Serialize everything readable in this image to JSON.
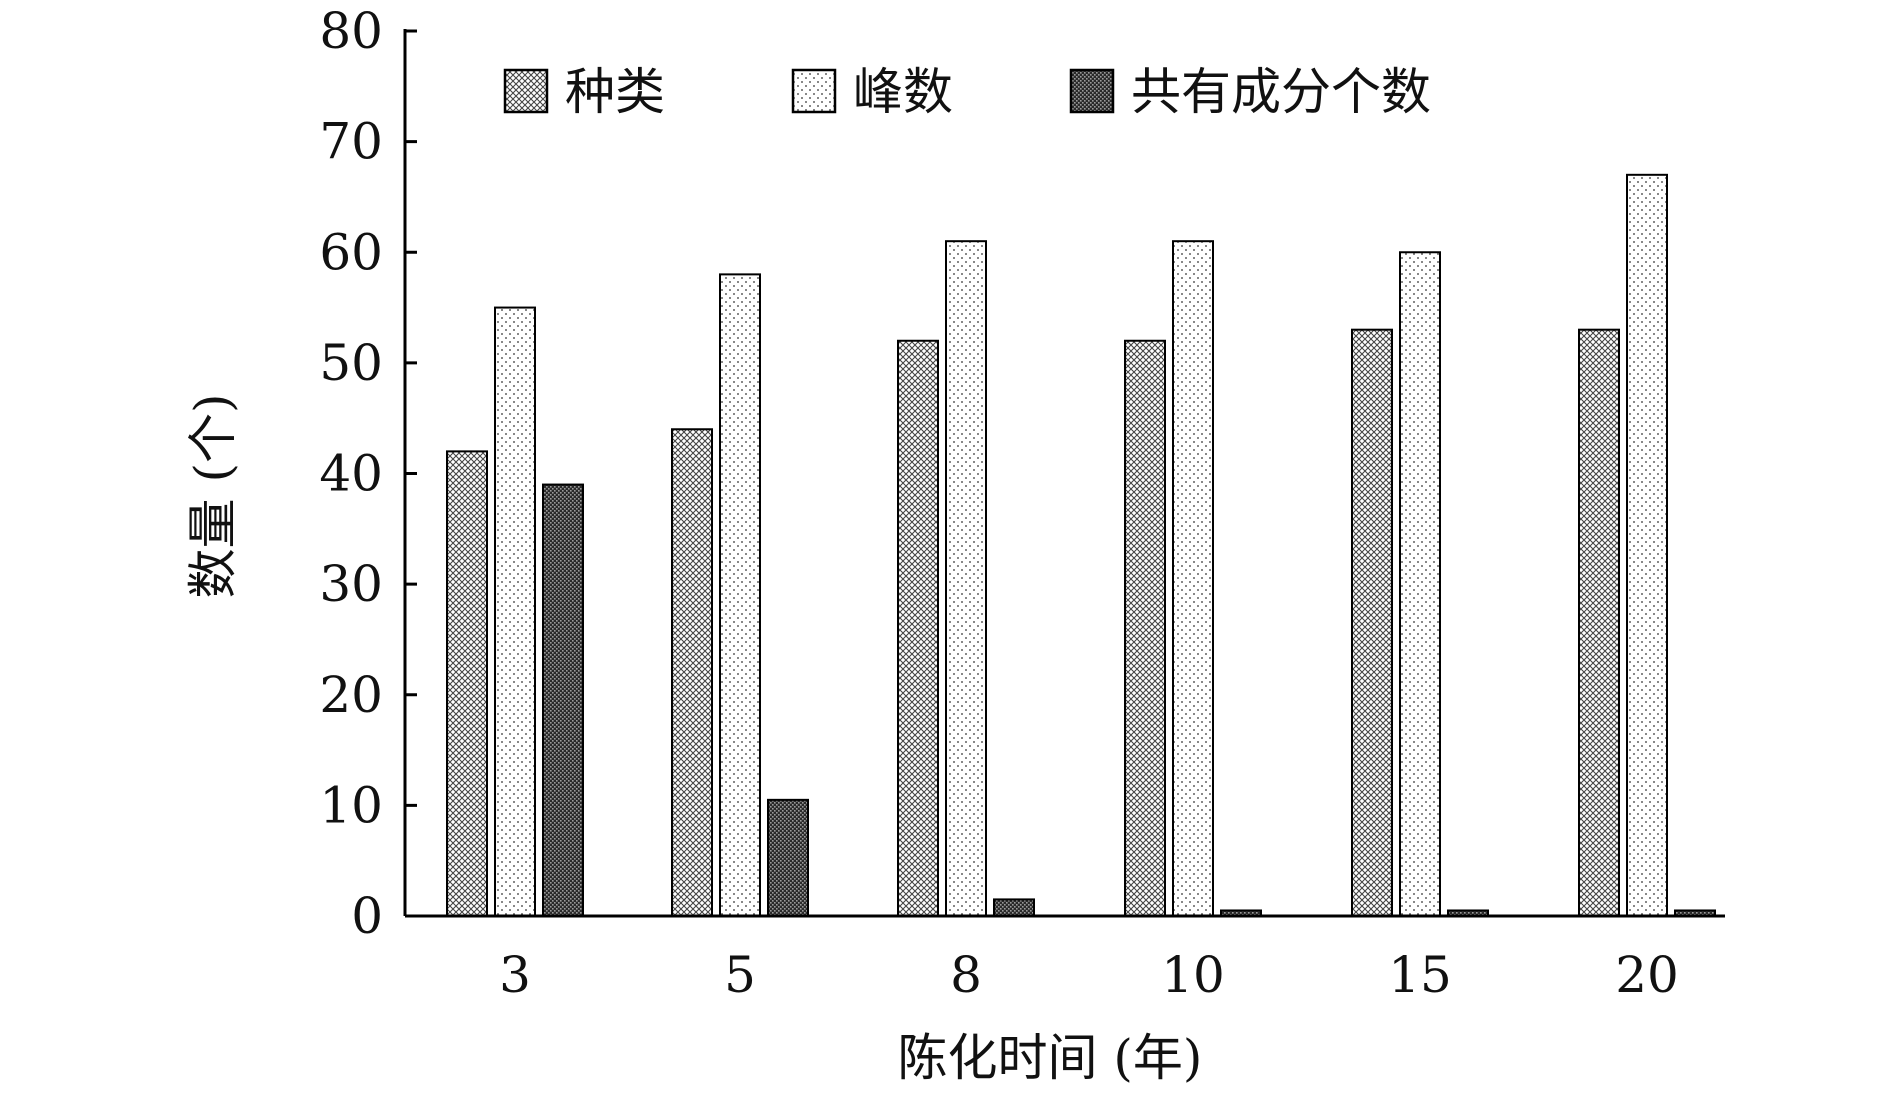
{
  "chart_data": {
    "type": "bar",
    "categories": [
      "3",
      "5",
      "8",
      "10",
      "15",
      "20"
    ],
    "series": [
      {
        "name": "种类",
        "values": [
          42,
          44,
          52,
          52,
          53,
          53
        ],
        "pattern": "crosshatch"
      },
      {
        "name": "峰数",
        "values": [
          55,
          58,
          61,
          61,
          60,
          67
        ],
        "pattern": "dots"
      },
      {
        "name": "共有成分个数",
        "values": [
          39,
          10.5,
          1.5,
          0.5,
          0.5,
          0.5
        ],
        "pattern": "dense"
      }
    ],
    "title": "",
    "xlabel": "陈化时间 (年)",
    "ylabel": "数量 (个)",
    "ylim": [
      0,
      80
    ],
    "yticks": [
      0,
      10,
      20,
      30,
      40,
      50,
      60,
      70,
      80
    ],
    "grid": false,
    "legend_position": "top"
  }
}
